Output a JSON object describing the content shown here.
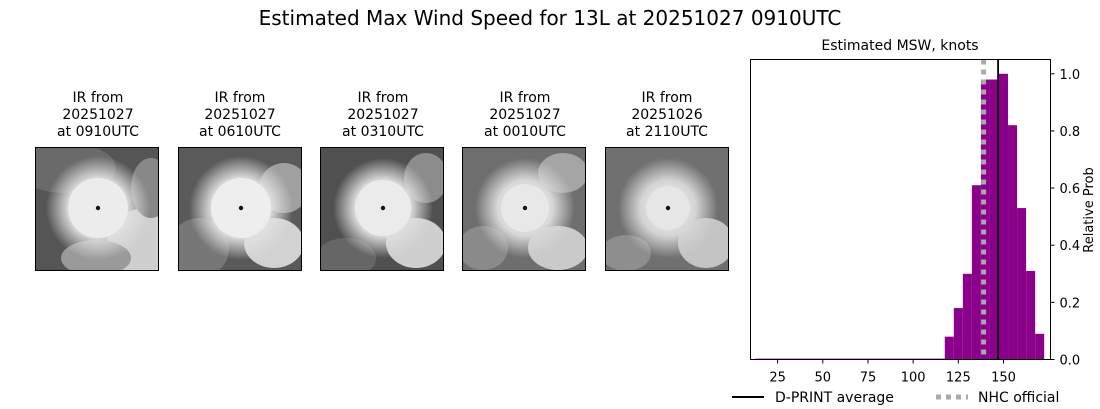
{
  "figure": {
    "title": "Estimated Max Wind Speed for 13L at 20251027 0910UTC"
  },
  "ir_panels": [
    {
      "line1": "IR from",
      "line2": "20251027",
      "line3": "at 0910UTC"
    },
    {
      "line1": "IR from",
      "line2": "20251027",
      "line3": "at 0610UTC"
    },
    {
      "line1": "IR from",
      "line2": "20251027",
      "line3": "at 0310UTC"
    },
    {
      "line1": "IR from",
      "line2": "20251027",
      "line3": "at 0010UTC"
    },
    {
      "line1": "IR from",
      "line2": "20251026",
      "line3": "at 2110UTC"
    }
  ],
  "chart_data": {
    "type": "bar",
    "title": "Estimated MSW, knots",
    "xlabel": "",
    "ylabel": "Relative Prob",
    "xlim": [
      10,
      176
    ],
    "ylim": [
      0,
      1.05
    ],
    "xticks": [
      25,
      50,
      75,
      100,
      125,
      150
    ],
    "yticks": [
      0.0,
      0.2,
      0.4,
      0.6,
      0.8,
      1.0
    ],
    "y_axis_side": "right",
    "bin_width": 5,
    "bins": [
      {
        "x": 15,
        "value": 0.003
      },
      {
        "x": 20,
        "value": 0.003
      },
      {
        "x": 25,
        "value": 0.003
      },
      {
        "x": 30,
        "value": 0.003
      },
      {
        "x": 35,
        "value": 0.003
      },
      {
        "x": 40,
        "value": 0.003
      },
      {
        "x": 45,
        "value": 0.003
      },
      {
        "x": 50,
        "value": 0.003
      },
      {
        "x": 55,
        "value": 0.003
      },
      {
        "x": 60,
        "value": 0.003
      },
      {
        "x": 65,
        "value": 0.003
      },
      {
        "x": 70,
        "value": 0.003
      },
      {
        "x": 75,
        "value": 0.003
      },
      {
        "x": 80,
        "value": 0.003
      },
      {
        "x": 85,
        "value": 0.003
      },
      {
        "x": 90,
        "value": 0.003
      },
      {
        "x": 95,
        "value": 0.003
      },
      {
        "x": 100,
        "value": 0.003
      },
      {
        "x": 105,
        "value": 0.003
      },
      {
        "x": 110,
        "value": 0.003
      },
      {
        "x": 115,
        "value": 0.003
      },
      {
        "x": 120,
        "value": 0.08
      },
      {
        "x": 125,
        "value": 0.18
      },
      {
        "x": 130,
        "value": 0.3
      },
      {
        "x": 135,
        "value": 0.61
      },
      {
        "x": 140,
        "value": 0.98
      },
      {
        "x": 145,
        "value": 0.98
      },
      {
        "x": 150,
        "value": 1.0
      },
      {
        "x": 155,
        "value": 0.82
      },
      {
        "x": 160,
        "value": 0.53
      },
      {
        "x": 165,
        "value": 0.31
      },
      {
        "x": 170,
        "value": 0.09
      }
    ],
    "bar_color": "#8b008b",
    "lines": [
      {
        "name": "D-PRINT average",
        "x": 147,
        "color": "#000000",
        "style": "solid"
      },
      {
        "name": "NHC official",
        "x": 139,
        "color": "#aaaaaa",
        "style": "dotted"
      }
    ],
    "legend": {
      "placement": "bottom"
    }
  }
}
